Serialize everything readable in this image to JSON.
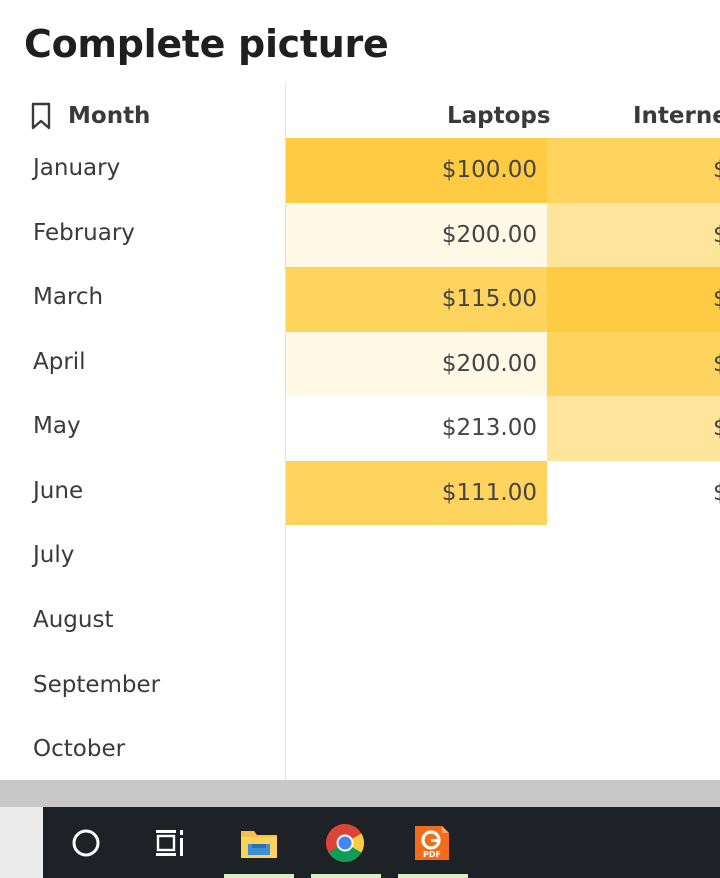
{
  "page": {
    "title": "Complete picture"
  },
  "months": {
    "header": "Month",
    "items": [
      "January",
      "February",
      "March",
      "April",
      "May",
      "June",
      "July",
      "August",
      "September",
      "October"
    ]
  },
  "table": {
    "columns": [
      "Laptops",
      "Internet"
    ],
    "rows": [
      {
        "laptops": "$100.00",
        "internet": "$"
      },
      {
        "laptops": "$200.00",
        "internet": "$"
      },
      {
        "laptops": "$115.00",
        "internet": "$"
      },
      {
        "laptops": "$200.00",
        "internet": "$"
      },
      {
        "laptops": "$213.00",
        "internet": "$"
      },
      {
        "laptops": "$111.00",
        "internet": "$"
      }
    ],
    "colors": {
      "laptops": [
        "#fecb42",
        "#fff9e6",
        "#fed35e",
        "#fff9e6",
        "#ffffff",
        "#fed35e"
      ],
      "internet": [
        "#fed35e",
        "#ffe49c",
        "#fecb42",
        "#fed35e",
        "#ffe49c",
        "#ffffff"
      ]
    }
  },
  "taskbar": {
    "icons": [
      "cortana-circle-icon",
      "task-view-icon",
      "file-explorer-icon",
      "chrome-icon",
      "foxit-pdf-icon"
    ],
    "pdf_badge": "PDF"
  }
}
